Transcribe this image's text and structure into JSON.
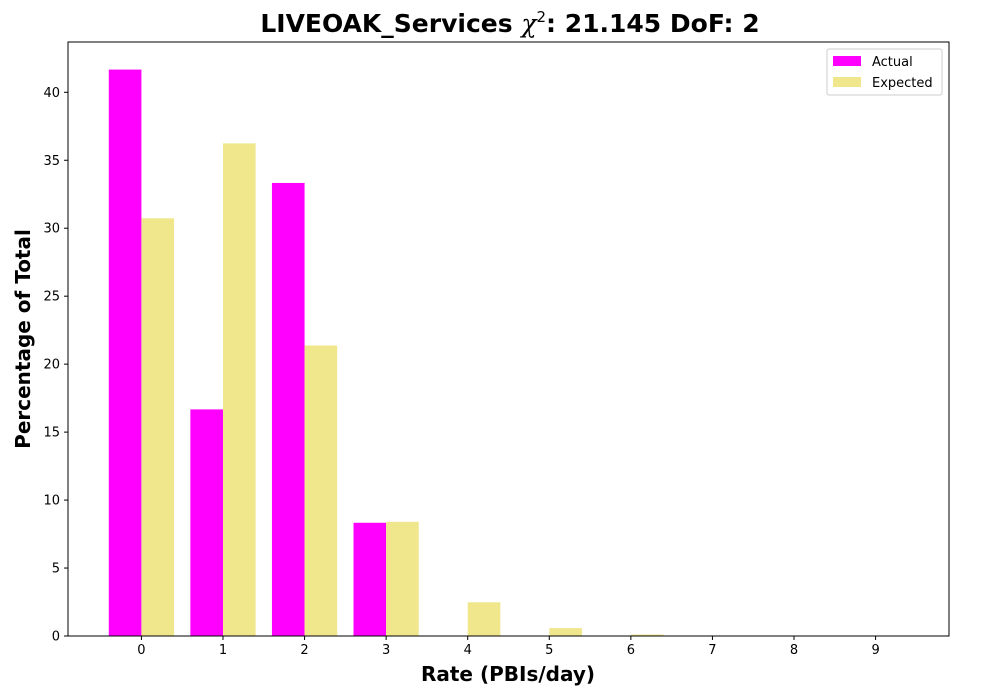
{
  "chart_data": {
    "type": "bar",
    "title": {
      "prefix": "LIVEOAK_Services ",
      "chi_symbol": "χ",
      "chi_exponent": "2",
      "suffix": ": 21.145 DoF: 2"
    },
    "xlabel": "Rate (PBIs/day)",
    "ylabel": "Percentage of Total",
    "categories": [
      "0",
      "1",
      "2",
      "3",
      "4",
      "5",
      "6",
      "7",
      "8",
      "9"
    ],
    "yticks": [
      0,
      5,
      10,
      15,
      20,
      25,
      30,
      35,
      40
    ],
    "xlim": [
      -0.9,
      9.9
    ],
    "ylim": [
      0,
      43.7
    ],
    "grid": false,
    "legend_position": "top-right",
    "series": [
      {
        "name": "Actual",
        "color": "#ff00ff",
        "values": [
          41.67,
          16.67,
          33.33,
          8.33,
          0,
          0,
          0,
          0,
          0,
          0
        ]
      },
      {
        "name": "Expected",
        "color": "#f0e68c",
        "values": [
          30.73,
          36.24,
          21.37,
          8.4,
          2.48,
          0.58,
          0.11,
          0.02,
          0,
          0
        ]
      }
    ]
  }
}
